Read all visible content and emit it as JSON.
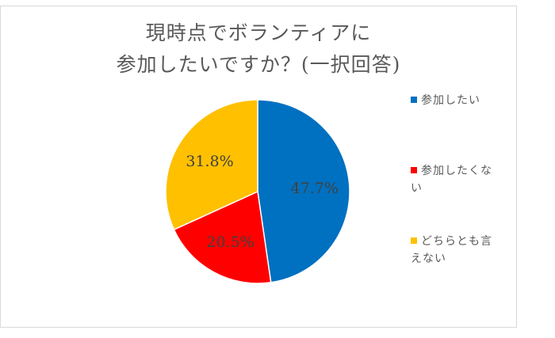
{
  "chart_data": {
    "type": "pie",
    "title": "現時点でボランティアに参加したいですか？(一択回答)",
    "title_lines": [
      "現時点でボランティアに",
      "参加したいですか？(一択回答)"
    ],
    "categories": [
      "参加したい",
      "参加したくない",
      "どちらとも言えない"
    ],
    "values": [
      47.7,
      20.5,
      31.8
    ],
    "labels": [
      "47.7%",
      "20.5%",
      "31.8%"
    ],
    "colors": [
      "#0070C0",
      "#FF0000",
      "#FFC000"
    ],
    "start_angle_deg": 0,
    "direction": "clockwise",
    "legend_position": "right"
  },
  "legend": {
    "items": [
      {
        "label": "参加したい",
        "color": "#0070C0"
      },
      {
        "label": "参加したくない",
        "color": "#FF0000"
      },
      {
        "label": "どちらとも言えない",
        "color": "#FFC000"
      }
    ]
  }
}
